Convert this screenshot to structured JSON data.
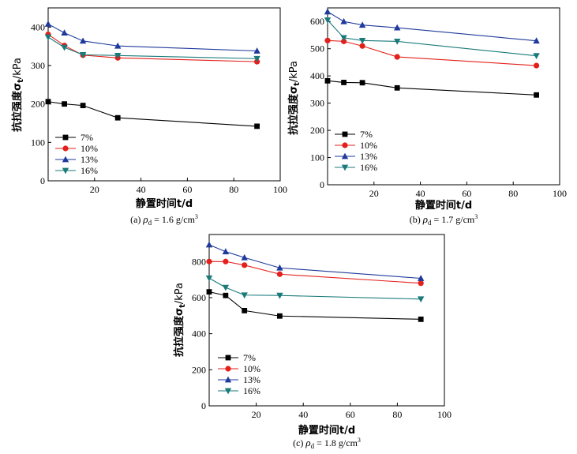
{
  "colors": {
    "s7": "#000000",
    "s10": "#e3201b",
    "s13": "#1f3a9c",
    "s16": "#1a7a7a"
  },
  "markers": {
    "s7": "square",
    "s10": "circle",
    "s13": "triangle-up",
    "s16": "triangle-down"
  },
  "chart_data": [
    {
      "type": "line",
      "caption_prefix": "(a)",
      "caption_sub": "d",
      "caption_value": "1.6 g/cm",
      "caption_sup": "3",
      "xlabel": "静置时间t/d",
      "ylabel": "抗拉强度σ",
      "ylabel_sub": "t",
      "ylabel_unit": "/kPa",
      "xlim": [
        0,
        100
      ],
      "ylim": [
        0,
        450
      ],
      "xticks": [
        20,
        40,
        60,
        80,
        100
      ],
      "yticks": [
        0,
        100,
        200,
        300,
        400
      ],
      "legend_position": "bottom-left",
      "series": [
        {
          "name": "7%",
          "x": [
            0,
            7,
            15,
            30,
            90
          ],
          "y": [
            206,
            200,
            196,
            164,
            142
          ]
        },
        {
          "name": "10%",
          "x": [
            0,
            7,
            15,
            30,
            90
          ],
          "y": [
            381,
            352,
            327,
            320,
            310
          ]
        },
        {
          "name": "13%",
          "x": [
            0,
            7,
            15,
            30,
            90
          ],
          "y": [
            408,
            385,
            364,
            351,
            338
          ]
        },
        {
          "name": "16%",
          "x": [
            0,
            7,
            15,
            30,
            90
          ],
          "y": [
            374,
            347,
            328,
            326,
            318
          ]
        }
      ]
    },
    {
      "type": "line",
      "caption_prefix": "(b)",
      "caption_sub": "d",
      "caption_value": "1.7 g/cm",
      "caption_sup": "3",
      "xlabel": "静置时间t/d",
      "ylabel": "抗拉强度σ",
      "ylabel_sub": "t",
      "ylabel_unit": "/kPa",
      "xlim": [
        0,
        100
      ],
      "ylim": [
        0,
        650
      ],
      "xticks": [
        20,
        40,
        60,
        80,
        100
      ],
      "yticks": [
        0,
        100,
        200,
        300,
        400,
        500,
        600
      ],
      "legend_position": "bottom-left",
      "series": [
        {
          "name": "7%",
          "x": [
            0,
            7,
            15,
            30,
            90
          ],
          "y": [
            382,
            376,
            375,
            356,
            330
          ]
        },
        {
          "name": "10%",
          "x": [
            0,
            7,
            15,
            30,
            90
          ],
          "y": [
            530,
            527,
            510,
            470,
            438
          ]
        },
        {
          "name": "13%",
          "x": [
            0,
            7,
            15,
            30,
            90
          ],
          "y": [
            636,
            600,
            587,
            577,
            529
          ]
        },
        {
          "name": "16%",
          "x": [
            0,
            7,
            15,
            30,
            90
          ],
          "y": [
            605,
            540,
            530,
            527,
            474
          ]
        }
      ]
    },
    {
      "type": "line",
      "caption_prefix": "(c)",
      "caption_sub": "d",
      "caption_value": "1.8 g/cm",
      "caption_sup": "3",
      "xlabel": "静置时间t/d",
      "ylabel": "抗拉强度σ",
      "ylabel_sub": "t",
      "ylabel_unit": "/kPa",
      "xlim": [
        0,
        100
      ],
      "ylim": [
        0,
        950
      ],
      "xticks": [
        20,
        40,
        60,
        80,
        100
      ],
      "yticks": [
        0,
        200,
        400,
        600,
        800
      ],
      "legend_position": "bottom-left",
      "series": [
        {
          "name": "7%",
          "x": [
            0,
            7,
            15,
            30,
            90
          ],
          "y": [
            632,
            612,
            528,
            498,
            480
          ]
        },
        {
          "name": "10%",
          "x": [
            0,
            7,
            15,
            30,
            90
          ],
          "y": [
            800,
            800,
            780,
            730,
            680
          ]
        },
        {
          "name": "13%",
          "x": [
            0,
            7,
            15,
            30,
            90
          ],
          "y": [
            893,
            855,
            822,
            765,
            707
          ]
        },
        {
          "name": "16%",
          "x": [
            0,
            7,
            15,
            30,
            90
          ],
          "y": [
            708,
            656,
            614,
            612,
            592
          ]
        }
      ]
    }
  ]
}
